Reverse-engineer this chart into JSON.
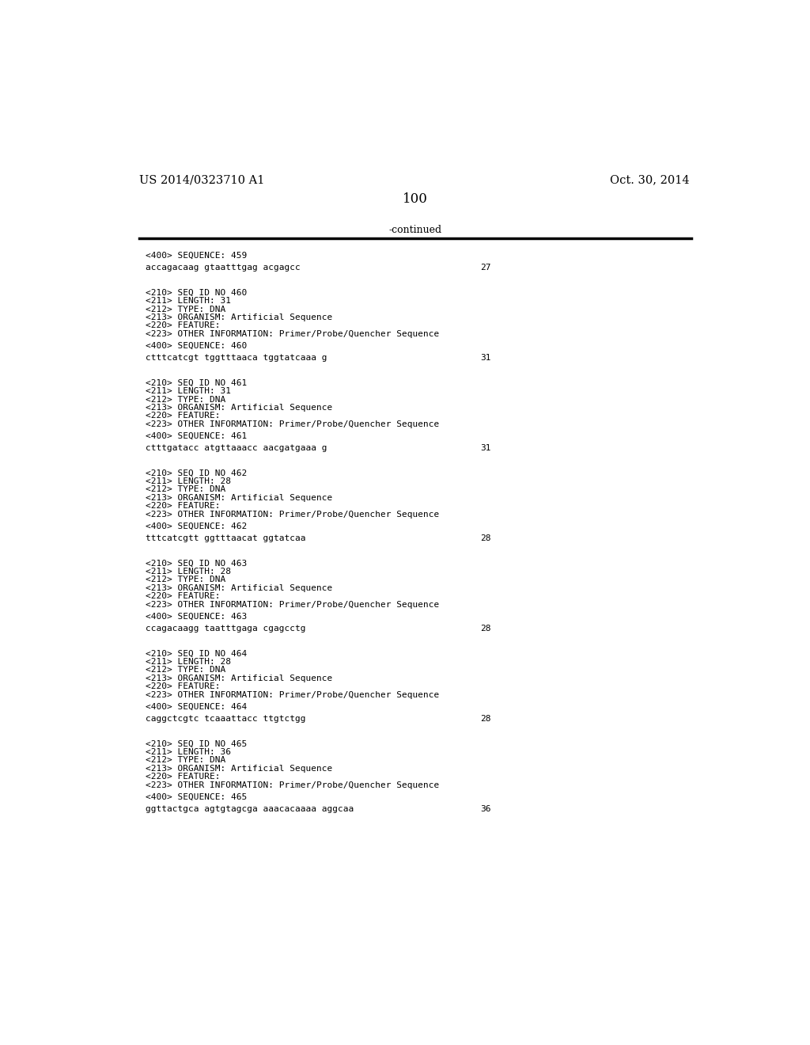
{
  "background_color": "#ffffff",
  "top_left_text": "US 2014/0323710 A1",
  "top_right_text": "Oct. 30, 2014",
  "page_number": "100",
  "continued_text": "-continued",
  "font_size_header": 10.5,
  "font_size_body": 8.0,
  "font_size_page_num": 12,
  "font_size_continued": 9.0,
  "blocks": [
    {
      "type": "sequence_header",
      "text": "<400> SEQUENCE: 459"
    },
    {
      "type": "sequence_data",
      "text": "accagacaag gtaatttgag acgagcc",
      "number": "27"
    },
    {
      "type": "spacer"
    },
    {
      "type": "entry",
      "lines": [
        "<210> SEQ ID NO 460",
        "<211> LENGTH: 31",
        "<212> TYPE: DNA",
        "<213> ORGANISM: Artificial Sequence",
        "<220> FEATURE:",
        "<223> OTHER INFORMATION: Primer/Probe/Quencher Sequence"
      ]
    },
    {
      "type": "sequence_header",
      "text": "<400> SEQUENCE: 460"
    },
    {
      "type": "sequence_data",
      "text": "ctttcatcgt tggtttaaca tggtatcaaa g",
      "number": "31"
    },
    {
      "type": "spacer"
    },
    {
      "type": "entry",
      "lines": [
        "<210> SEQ ID NO 461",
        "<211> LENGTH: 31",
        "<212> TYPE: DNA",
        "<213> ORGANISM: Artificial Sequence",
        "<220> FEATURE:",
        "<223> OTHER INFORMATION: Primer/Probe/Quencher Sequence"
      ]
    },
    {
      "type": "sequence_header",
      "text": "<400> SEQUENCE: 461"
    },
    {
      "type": "sequence_data",
      "text": "ctttgatacc atgttaaacc aacgatgaaa g",
      "number": "31"
    },
    {
      "type": "spacer"
    },
    {
      "type": "entry",
      "lines": [
        "<210> SEQ ID NO 462",
        "<211> LENGTH: 28",
        "<212> TYPE: DNA",
        "<213> ORGANISM: Artificial Sequence",
        "<220> FEATURE:",
        "<223> OTHER INFORMATION: Primer/Probe/Quencher Sequence"
      ]
    },
    {
      "type": "sequence_header",
      "text": "<400> SEQUENCE: 462"
    },
    {
      "type": "sequence_data",
      "text": "tttcatcgtt ggtttaacat ggtatcaa",
      "number": "28"
    },
    {
      "type": "spacer"
    },
    {
      "type": "entry",
      "lines": [
        "<210> SEQ ID NO 463",
        "<211> LENGTH: 28",
        "<212> TYPE: DNA",
        "<213> ORGANISM: Artificial Sequence",
        "<220> FEATURE:",
        "<223> OTHER INFORMATION: Primer/Probe/Quencher Sequence"
      ]
    },
    {
      "type": "sequence_header",
      "text": "<400> SEQUENCE: 463"
    },
    {
      "type": "sequence_data",
      "text": "ccagacaagg taatttgaga cgagcctg",
      "number": "28"
    },
    {
      "type": "spacer"
    },
    {
      "type": "entry",
      "lines": [
        "<210> SEQ ID NO 464",
        "<211> LENGTH: 28",
        "<212> TYPE: DNA",
        "<213> ORGANISM: Artificial Sequence",
        "<220> FEATURE:",
        "<223> OTHER INFORMATION: Primer/Probe/Quencher Sequence"
      ]
    },
    {
      "type": "sequence_header",
      "text": "<400> SEQUENCE: 464"
    },
    {
      "type": "sequence_data",
      "text": "caggctcgtc tcaaattacc ttgtctgg",
      "number": "28"
    },
    {
      "type": "spacer"
    },
    {
      "type": "entry",
      "lines": [
        "<210> SEQ ID NO 465",
        "<211> LENGTH: 36",
        "<212> TYPE: DNA",
        "<213> ORGANISM: Artificial Sequence",
        "<220> FEATURE:",
        "<223> OTHER INFORMATION: Primer/Probe/Quencher Sequence"
      ]
    },
    {
      "type": "sequence_header",
      "text": "<400> SEQUENCE: 465"
    },
    {
      "type": "sequence_data",
      "text": "ggttactgca agtgtagcga aaacacaaaa aggcaa",
      "number": "36"
    }
  ]
}
